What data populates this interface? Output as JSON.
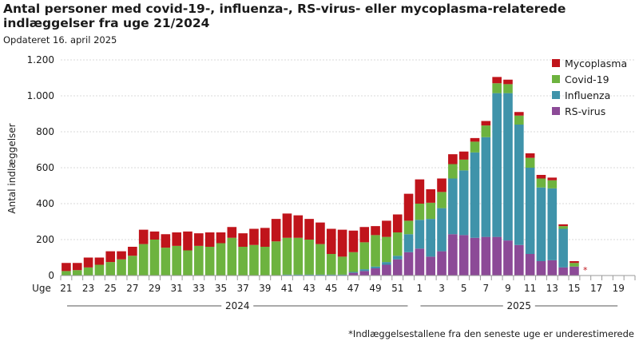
{
  "title": "Antal personer med covid-19-, influenza-, RS-virus- eller mycoplasma-relaterede indlæggelser fra uge 21/2024",
  "subtitle": "Opdateret 16. april 2025",
  "footnote": "*Indlæggelsestallene fra den seneste uge er underestimerede",
  "chart_data": {
    "type": "bar",
    "stacked": true,
    "ylabel": "Antal indlæggelser",
    "xlabel_prefix": "Uge",
    "ylim": [
      0,
      1200
    ],
    "yticks": [
      0,
      200,
      400,
      600,
      800,
      1000,
      1200
    ],
    "ytick_labels": [
      "0",
      "200",
      "400",
      "600",
      "800",
      "1.000",
      "1.200"
    ],
    "grid": true,
    "legend_position": "top-right",
    "year_groups": [
      {
        "label": "2024",
        "from": 0,
        "to": 31
      },
      {
        "label": "2025",
        "from": 32,
        "to": 50
      }
    ],
    "asterisk_label": "*",
    "asterisk_index": 47,
    "hatched_index": 47,
    "categories": [
      "21",
      "22",
      "23",
      "24",
      "25",
      "26",
      "27",
      "28",
      "29",
      "30",
      "31",
      "32",
      "33",
      "34",
      "35",
      "36",
      "37",
      "38",
      "39",
      "40",
      "41",
      "42",
      "43",
      "44",
      "45",
      "46",
      "47",
      "48",
      "49",
      "50",
      "51",
      "52",
      "1",
      "2",
      "3",
      "4",
      "5",
      "6",
      "7",
      "8",
      "9",
      "10",
      "11",
      "12",
      "13",
      "14",
      "15",
      "16",
      "17",
      "18",
      "19",
      "20"
    ],
    "visible_tick_labels": [
      "21",
      "",
      "23",
      "",
      "25",
      "",
      "27",
      "",
      "29",
      "",
      "31",
      "",
      "33",
      "",
      "35",
      "",
      "37",
      "",
      "39",
      "",
      "41",
      "",
      "43",
      "",
      "45",
      "",
      "47",
      "",
      "49",
      "",
      "51",
      "",
      "1",
      "",
      "3",
      "",
      "5",
      "",
      "7",
      "",
      "9",
      "",
      "11",
      "",
      "13",
      "",
      "15",
      "",
      "17",
      "",
      "19",
      ""
    ],
    "series": [
      {
        "name": "RS-virus",
        "color": "#8c4a97",
        "values": [
          0,
          0,
          0,
          0,
          0,
          0,
          0,
          0,
          0,
          0,
          0,
          0,
          0,
          0,
          0,
          0,
          0,
          0,
          0,
          0,
          0,
          0,
          0,
          0,
          0,
          0,
          15,
          25,
          40,
          60,
          90,
          130,
          150,
          105,
          135,
          230,
          225,
          210,
          215,
          215,
          195,
          170,
          120,
          80,
          85,
          45,
          50,
          0,
          0,
          0,
          0,
          0
        ]
      },
      {
        "name": "Influenza",
        "color": "#3f93aa",
        "values": [
          0,
          0,
          0,
          0,
          0,
          0,
          0,
          0,
          0,
          0,
          0,
          0,
          0,
          0,
          0,
          0,
          0,
          0,
          0,
          0,
          5,
          5,
          5,
          5,
          5,
          5,
          5,
          10,
          10,
          15,
          20,
          100,
          160,
          210,
          240,
          310,
          360,
          475,
          555,
          800,
          820,
          670,
          480,
          410,
          400,
          215,
          0,
          0,
          0,
          0,
          0,
          0
        ]
      },
      {
        "name": "Covid-19",
        "color": "#6db33f",
        "values": [
          25,
          30,
          45,
          60,
          75,
          90,
          110,
          175,
          200,
          155,
          165,
          140,
          165,
          160,
          180,
          210,
          160,
          170,
          160,
          190,
          205,
          205,
          195,
          170,
          115,
          100,
          110,
          150,
          175,
          140,
          130,
          75,
          90,
          90,
          90,
          80,
          60,
          60,
          65,
          55,
          50,
          50,
          55,
          50,
          45,
          15,
          20,
          0,
          0,
          0,
          0,
          0
        ]
      },
      {
        "name": "Mycoplasma",
        "color": "#c0141b",
        "values": [
          45,
          40,
          55,
          40,
          60,
          45,
          50,
          80,
          45,
          75,
          75,
          105,
          70,
          80,
          60,
          60,
          75,
          90,
          105,
          125,
          135,
          125,
          115,
          120,
          140,
          150,
          120,
          85,
          50,
          90,
          100,
          150,
          135,
          75,
          75,
          55,
          45,
          20,
          25,
          35,
          25,
          20,
          25,
          20,
          15,
          10,
          10,
          0,
          0,
          0,
          0,
          0
        ]
      }
    ]
  }
}
